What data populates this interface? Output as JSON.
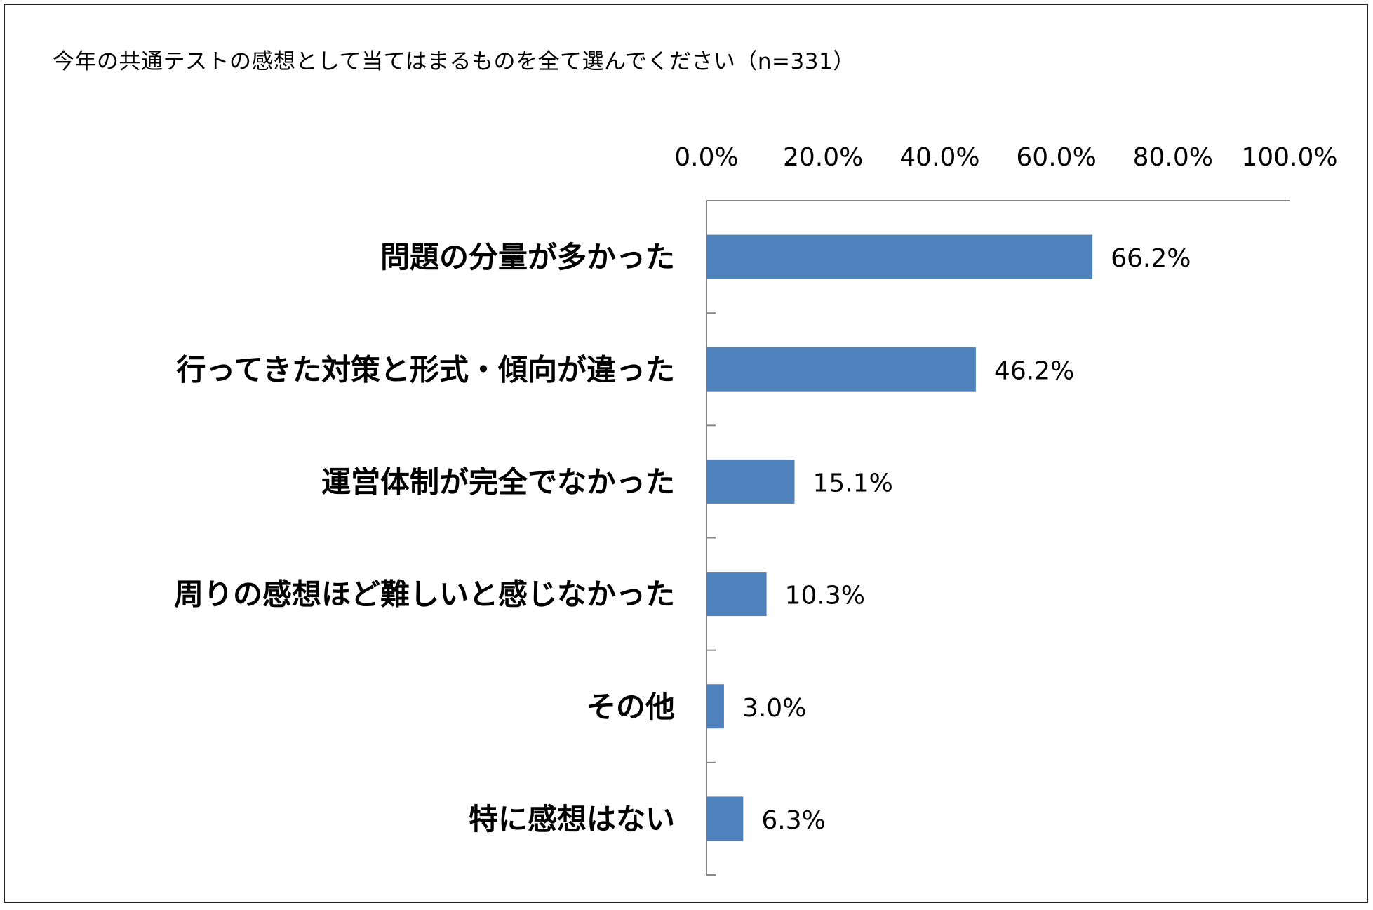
{
  "chart_data": {
    "type": "bar",
    "orientation": "horizontal",
    "title": "今年の共通テストの感想として当てはまるものを全て選んでください（n=331）",
    "categories": [
      "問題の分量が多かった",
      "行ってきた対策と形式・傾向が違った",
      "運営体制が完全でなかった",
      "周りの感想ほど難しいと感じなかった",
      "その他",
      "特に感想はない"
    ],
    "values": [
      66.2,
      46.2,
      15.1,
      10.3,
      3.0,
      6.3
    ],
    "data_labels": [
      "66.2%",
      "46.2%",
      "15.1%",
      "10.3%",
      "3.0%",
      "6.3%"
    ],
    "ticks": [
      0,
      20,
      40,
      60,
      80,
      100
    ],
    "tick_labels": [
      "0.0%",
      "20.0%",
      "40.0%",
      "60.0%",
      "80.0%",
      "100.0%"
    ],
    "xlim": [
      0,
      100
    ],
    "axis_position": "top",
    "grid": false,
    "legend": "none",
    "bar_color": "#4F81BD"
  }
}
